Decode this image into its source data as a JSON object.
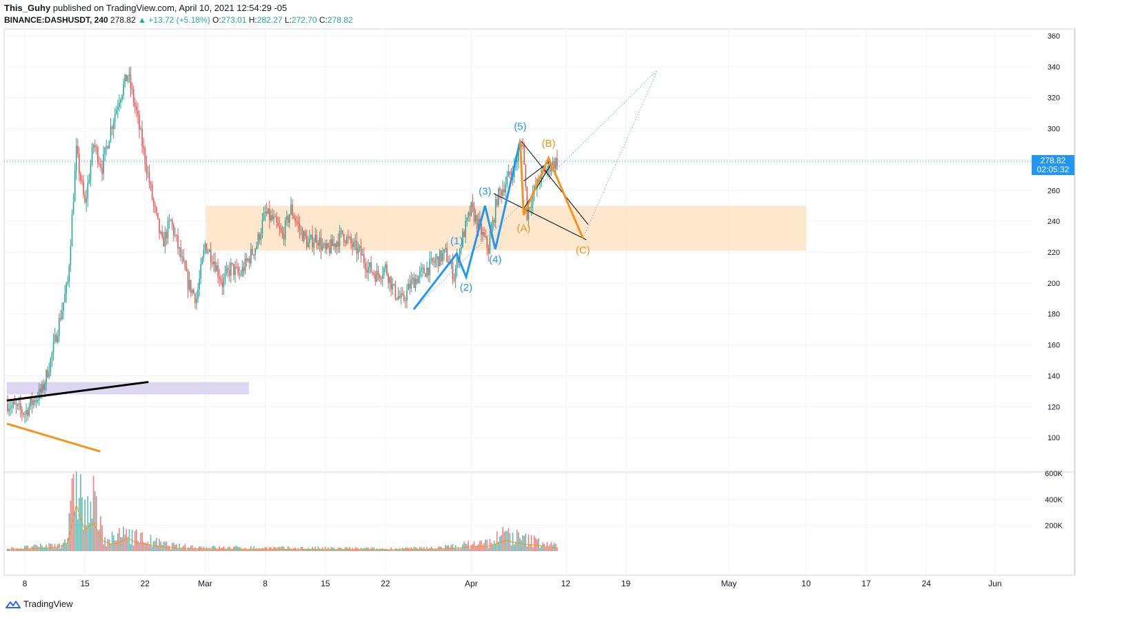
{
  "header": {
    "author": "This_Guhy",
    "published_text": " published on TradingView.com, April 10, 2021 12:54:29 -05",
    "symbol": "BINANCE:DASHUSDT, 240",
    "last": "278.82",
    "change": "▲ +13.72 (+5.18%)",
    "o_label": "O:",
    "o": "273.01",
    "h_label": "H:",
    "h": "282.27",
    "l_label": "L:",
    "l": "272.70",
    "c_label": "C:",
    "c": "278.82"
  },
  "price_tag": {
    "price": "278.82",
    "countdown": "02:05:32"
  },
  "footer": {
    "brand": "TradingView"
  },
  "colors": {
    "up": "#26a69a",
    "down": "#ef5350",
    "blue": "#2196f3",
    "orange": "#f7931a",
    "zone": "#fde3c4",
    "purple": "#d9d2ef",
    "grid": "#f0f3fa"
  },
  "chart_data": {
    "type": "candlestick",
    "symbol": "BINANCE:DASHUSDT",
    "timeframe": "240",
    "y_ticks": [
      360,
      340,
      320,
      300,
      280,
      260,
      240,
      220,
      200,
      180,
      160,
      140,
      120,
      100
    ],
    "volume_ticks": [
      "600K",
      "400K",
      "200K"
    ],
    "volume_tick_values": [
      600000,
      400000,
      200000
    ],
    "x_ticks": [
      {
        "label": "8",
        "day": 8
      },
      {
        "label": "15",
        "day": 15
      },
      {
        "label": "22",
        "day": 22
      },
      {
        "label": "Mar",
        "day": 29
      },
      {
        "label": "8",
        "day": 36
      },
      {
        "label": "15",
        "day": 43
      },
      {
        "label": "22",
        "day": 50
      },
      {
        "label": "Apr",
        "day": 60
      },
      {
        "label": "12",
        "day": 71
      },
      {
        "label": "19",
        "day": 78
      },
      {
        "label": "May",
        "day": 90
      },
      {
        "label": "10",
        "day": 99
      },
      {
        "label": "17",
        "day": 106
      },
      {
        "label": "24",
        "day": 113
      },
      {
        "label": "Jun",
        "day": 121
      }
    ],
    "price_path": [
      [
        6,
        122
      ],
      [
        8,
        116
      ],
      [
        9,
        124
      ],
      [
        10,
        130
      ],
      [
        11,
        150
      ],
      [
        12,
        175
      ],
      [
        13,
        200
      ],
      [
        14,
        285
      ],
      [
        15,
        250
      ],
      [
        16,
        290
      ],
      [
        17,
        275
      ],
      [
        18,
        300
      ],
      [
        19,
        320
      ],
      [
        20,
        335
      ],
      [
        21,
        310
      ],
      [
        22,
        280
      ],
      [
        23,
        250
      ],
      [
        24,
        225
      ],
      [
        25,
        240
      ],
      [
        26,
        220
      ],
      [
        27,
        200
      ],
      [
        28,
        190
      ],
      [
        29,
        225
      ],
      [
        30,
        215
      ],
      [
        31,
        200
      ],
      [
        32,
        210
      ],
      [
        33,
        205
      ],
      [
        34,
        215
      ],
      [
        35,
        225
      ],
      [
        36,
        245
      ],
      [
        37,
        240
      ],
      [
        38,
        230
      ],
      [
        39,
        248
      ],
      [
        40,
        235
      ],
      [
        41,
        225
      ],
      [
        42,
        230
      ],
      [
        43,
        220
      ],
      [
        44,
        225
      ],
      [
        45,
        232
      ],
      [
        46,
        225
      ],
      [
        47,
        220
      ],
      [
        48,
        210
      ],
      [
        49,
        205
      ],
      [
        50,
        210
      ],
      [
        51,
        195
      ],
      [
        52,
        188
      ],
      [
        53,
        200
      ],
      [
        54,
        205
      ],
      [
        55,
        210
      ],
      [
        56,
        215
      ],
      [
        57,
        219
      ],
      [
        58,
        205
      ],
      [
        59,
        230
      ],
      [
        60,
        248
      ],
      [
        61,
        235
      ],
      [
        62,
        222
      ],
      [
        63,
        255
      ],
      [
        64,
        265
      ],
      [
        65,
        275
      ],
      [
        66,
        292
      ],
      [
        66.5,
        245
      ],
      [
        67,
        255
      ],
      [
        68,
        268
      ],
      [
        69,
        275
      ],
      [
        70,
        279
      ]
    ],
    "volume_path": [
      [
        6,
        20000
      ],
      [
        8,
        30000
      ],
      [
        10,
        40000
      ],
      [
        12,
        60000
      ],
      [
        13,
        120000
      ],
      [
        14,
        650000
      ],
      [
        15,
        300000
      ],
      [
        16,
        400000
      ],
      [
        17,
        150000
      ],
      [
        18,
        100000
      ],
      [
        19,
        120000
      ],
      [
        20,
        180000
      ],
      [
        21,
        120000
      ],
      [
        22,
        100000
      ],
      [
        24,
        60000
      ],
      [
        26,
        40000
      ],
      [
        30,
        30000
      ],
      [
        40,
        25000
      ],
      [
        50,
        20000
      ],
      [
        55,
        25000
      ],
      [
        58,
        40000
      ],
      [
        60,
        60000
      ],
      [
        62,
        70000
      ],
      [
        64,
        150000
      ],
      [
        66,
        100000
      ],
      [
        68,
        80000
      ],
      [
        70,
        40000
      ]
    ],
    "annotations": {
      "impulse_wave": {
        "labels": [
          "(1)",
          "(2)",
          "(3)",
          "(4)",
          "(5)"
        ],
        "points": [
          [
            53.3,
            183
          ],
          [
            58.3,
            219
          ],
          [
            59.4,
            204
          ],
          [
            61.6,
            250
          ],
          [
            62.8,
            222
          ],
          [
            65.7,
            292
          ]
        ]
      },
      "corrective_wave": {
        "labels": [
          "(A)",
          "(B)",
          "(C)"
        ],
        "points": [
          [
            65.7,
            292
          ],
          [
            66.1,
            244
          ],
          [
            69.0,
            281
          ],
          [
            73.0,
            229
          ]
        ]
      },
      "support_zone": {
        "day_from": 29.1,
        "day_to": 99.0,
        "price_from": 221,
        "price_to": 250
      },
      "lower_zone": {
        "day_from": 5.9,
        "day_to": 34.1,
        "price_from": 128,
        "price_to": 136
      },
      "current_price_line": 278.82
    }
  }
}
